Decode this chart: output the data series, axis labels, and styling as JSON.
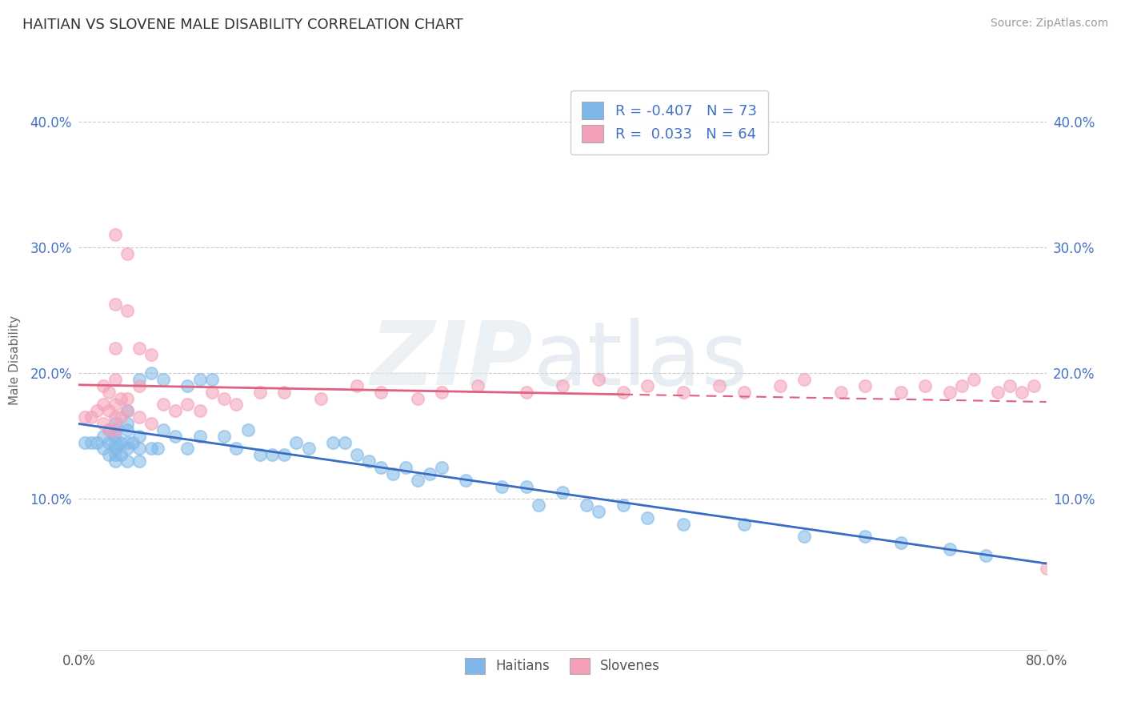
{
  "title": "HAITIAN VS SLOVENE MALE DISABILITY CORRELATION CHART",
  "source": "Source: ZipAtlas.com",
  "ylabel": "Male Disability",
  "xlim": [
    0.0,
    0.8
  ],
  "ylim": [
    -0.02,
    0.44
  ],
  "haitian_color": "#7fb8e8",
  "slovene_color": "#f4a0b8",
  "haitian_line_color": "#3a6cc4",
  "slovene_line_color": "#e06080",
  "R_haitian": -0.407,
  "N_haitian": 73,
  "R_slovene": 0.033,
  "N_slovene": 64,
  "background_color": "#ffffff",
  "grid_color": "#cccccc",
  "haitian_x": [
    0.005,
    0.01,
    0.015,
    0.02,
    0.02,
    0.025,
    0.025,
    0.025,
    0.03,
    0.03,
    0.03,
    0.03,
    0.03,
    0.03,
    0.03,
    0.035,
    0.035,
    0.04,
    0.04,
    0.04,
    0.04,
    0.04,
    0.04,
    0.045,
    0.05,
    0.05,
    0.05,
    0.05,
    0.06,
    0.06,
    0.065,
    0.07,
    0.07,
    0.08,
    0.09,
    0.09,
    0.1,
    0.1,
    0.11,
    0.12,
    0.13,
    0.14,
    0.15,
    0.16,
    0.17,
    0.18,
    0.19,
    0.21,
    0.22,
    0.23,
    0.24,
    0.25,
    0.26,
    0.27,
    0.28,
    0.29,
    0.3,
    0.32,
    0.35,
    0.37,
    0.38,
    0.4,
    0.42,
    0.43,
    0.45,
    0.47,
    0.5,
    0.55,
    0.6,
    0.65,
    0.68,
    0.72,
    0.75
  ],
  "haitian_y": [
    0.145,
    0.145,
    0.145,
    0.14,
    0.15,
    0.135,
    0.145,
    0.155,
    0.13,
    0.135,
    0.14,
    0.145,
    0.15,
    0.155,
    0.16,
    0.135,
    0.145,
    0.13,
    0.14,
    0.145,
    0.155,
    0.16,
    0.17,
    0.145,
    0.13,
    0.14,
    0.15,
    0.195,
    0.14,
    0.2,
    0.14,
    0.155,
    0.195,
    0.15,
    0.14,
    0.19,
    0.15,
    0.195,
    0.195,
    0.15,
    0.14,
    0.155,
    0.135,
    0.135,
    0.135,
    0.145,
    0.14,
    0.145,
    0.145,
    0.135,
    0.13,
    0.125,
    0.12,
    0.125,
    0.115,
    0.12,
    0.125,
    0.115,
    0.11,
    0.11,
    0.095,
    0.105,
    0.095,
    0.09,
    0.095,
    0.085,
    0.08,
    0.08,
    0.07,
    0.07,
    0.065,
    0.06,
    0.055
  ],
  "slovene_x": [
    0.005,
    0.01,
    0.015,
    0.02,
    0.02,
    0.02,
    0.025,
    0.025,
    0.025,
    0.03,
    0.03,
    0.03,
    0.03,
    0.03,
    0.03,
    0.03,
    0.035,
    0.035,
    0.04,
    0.04,
    0.04,
    0.04,
    0.05,
    0.05,
    0.05,
    0.06,
    0.06,
    0.07,
    0.08,
    0.09,
    0.1,
    0.11,
    0.12,
    0.13,
    0.15,
    0.17,
    0.2,
    0.23,
    0.25,
    0.28,
    0.3,
    0.33,
    0.37,
    0.4,
    0.43,
    0.45,
    0.47,
    0.5,
    0.53,
    0.55,
    0.58,
    0.6,
    0.63,
    0.65,
    0.68,
    0.7,
    0.72,
    0.73,
    0.74,
    0.76,
    0.77,
    0.78,
    0.79,
    0.8
  ],
  "slovene_y": [
    0.165,
    0.165,
    0.17,
    0.16,
    0.175,
    0.19,
    0.155,
    0.17,
    0.185,
    0.155,
    0.165,
    0.175,
    0.195,
    0.22,
    0.255,
    0.31,
    0.165,
    0.18,
    0.17,
    0.18,
    0.25,
    0.295,
    0.165,
    0.19,
    0.22,
    0.16,
    0.215,
    0.175,
    0.17,
    0.175,
    0.17,
    0.185,
    0.18,
    0.175,
    0.185,
    0.185,
    0.18,
    0.19,
    0.185,
    0.18,
    0.185,
    0.19,
    0.185,
    0.19,
    0.195,
    0.185,
    0.19,
    0.185,
    0.19,
    0.185,
    0.19,
    0.195,
    0.185,
    0.19,
    0.185,
    0.19,
    0.185,
    0.19,
    0.195,
    0.185,
    0.19,
    0.185,
    0.19,
    0.045
  ]
}
